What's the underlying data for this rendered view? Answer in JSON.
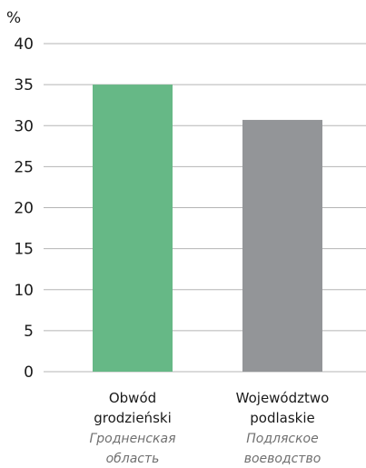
{
  "chart_data": {
    "type": "bar",
    "ylabel": "%",
    "ylim": [
      0,
      40
    ],
    "yticks": [
      0,
      5,
      10,
      15,
      20,
      25,
      30,
      35,
      40
    ],
    "grid": true,
    "categories": [
      {
        "label_lines": [
          "Obwód",
          "grodzieński"
        ],
        "sublabel_lines": [
          "Гродненская",
          "область"
        ]
      },
      {
        "label_lines": [
          "Województwo",
          "podlaskie"
        ],
        "sublabel_lines": [
          "Подляское",
          "воеводство"
        ]
      }
    ],
    "values": [
      35.0,
      30.7
    ],
    "colors": [
      "#66b886",
      "#939598"
    ]
  }
}
